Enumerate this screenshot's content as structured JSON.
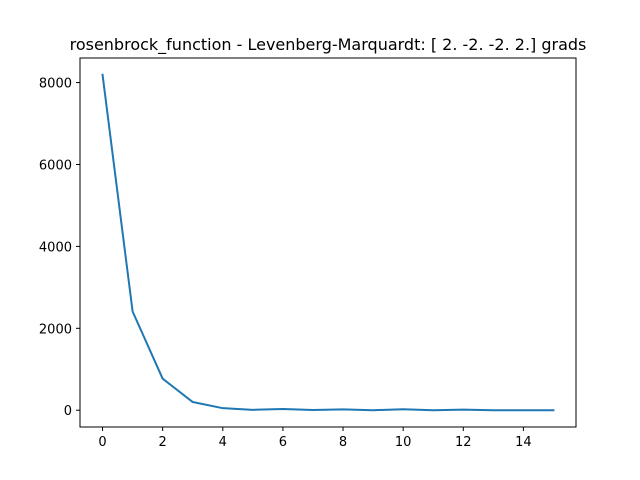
{
  "chart_data": {
    "type": "line",
    "title": "rosenbrock_function - Levenberg-Marquardt: [ 2. -2. -2.  2.] grads",
    "xlabel": "",
    "ylabel": "",
    "xlim": [
      -0.75,
      15.75
    ],
    "ylim": [
      -409.5,
      8599.5
    ],
    "xticks": [
      0,
      2,
      4,
      6,
      8,
      10,
      12,
      14
    ],
    "yticks": [
      0,
      2000,
      4000,
      6000,
      8000
    ],
    "xtick_labels": [
      "0",
      "2",
      "4",
      "6",
      "8",
      "10",
      "12",
      "14"
    ],
    "ytick_labels": [
      "0",
      "2000",
      "4000",
      "6000",
      "8000"
    ],
    "grid": false,
    "legend": "none",
    "series": [
      {
        "color": "#1f77b4",
        "x": [
          0,
          1,
          2,
          3,
          4,
          5,
          6,
          7,
          8,
          9,
          10,
          11,
          12,
          13,
          14,
          15
        ],
        "y": [
          8190,
          2410,
          770,
          200,
          50,
          10,
          30,
          5,
          20,
          0,
          25,
          0,
          15,
          0,
          0,
          0
        ]
      }
    ]
  }
}
